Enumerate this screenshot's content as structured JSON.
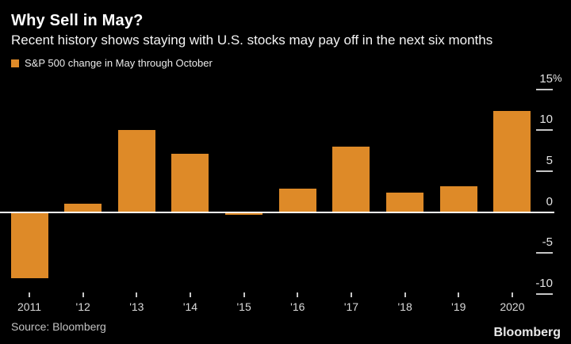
{
  "header": {
    "title": "Why Sell in May?",
    "subtitle": "Recent history shows staying with U.S. stocks may pay off in the next six months"
  },
  "legend": {
    "label": "S&P 500 change in May through October"
  },
  "footer": {
    "source": "Source: Bloomberg",
    "brand": "Bloomberg"
  },
  "colors": {
    "bar": "#de8a28",
    "background": "#000000",
    "title_text": "#ffffff",
    "axis_text": "#dadada",
    "zero_line": "#ffffff"
  },
  "chart_data": {
    "type": "bar",
    "title": "Why Sell in May?",
    "subtitle": "Recent history shows staying with U.S. stocks may pay off in the next six months",
    "series_name": "S&P 500 change in May through October",
    "categories": [
      "2011",
      "'12",
      "'13",
      "'14",
      "'15",
      "'16",
      "'17",
      "'18",
      "'19",
      "2020"
    ],
    "values": [
      -8.1,
      1.0,
      10.0,
      7.1,
      -0.3,
      2.9,
      8.0,
      2.4,
      3.1,
      12.3
    ],
    "xlabel": "",
    "ylabel": "%",
    "y_ticks": [
      15,
      10,
      5,
      0,
      -5,
      -10
    ],
    "y_unit": "%",
    "ylim": [
      -12,
      16
    ],
    "grid": false,
    "legend_position": "top-left",
    "axis_side": "right"
  }
}
